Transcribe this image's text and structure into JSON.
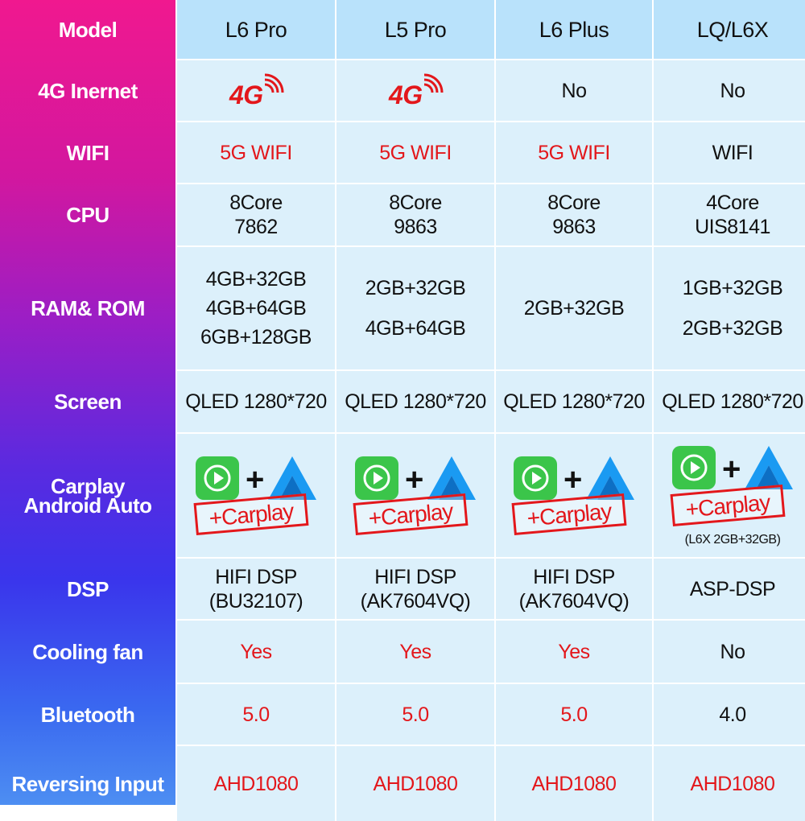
{
  "header": {
    "label": "Model",
    "models": [
      "L6 Pro",
      "L5 Pro",
      "L6 Plus",
      "LQ/L6X"
    ]
  },
  "rows": {
    "internet": {
      "label": "4G Inernet",
      "icon_text": "4G",
      "values": [
        "",
        "",
        "No",
        "No"
      ]
    },
    "wifi": {
      "label": "WIFI",
      "values": [
        "5G WIFI",
        "5G WIFI",
        "5G WIFI",
        "WIFI"
      ]
    },
    "cpu": {
      "label": "CPU",
      "values": [
        [
          "8Core",
          "7862"
        ],
        [
          "8Core",
          "9863"
        ],
        [
          "8Core",
          "9863"
        ],
        [
          "4Core",
          "UIS8141"
        ]
      ]
    },
    "ram": {
      "label": "RAM& ROM",
      "values": [
        [
          "4GB+32GB",
          "4GB+64GB",
          "6GB+128GB"
        ],
        [
          "2GB+32GB",
          "4GB+64GB"
        ],
        [
          "2GB+32GB"
        ],
        [
          "1GB+32GB",
          "2GB+32GB"
        ]
      ]
    },
    "screen": {
      "label": "Screen",
      "values": [
        "QLED 1280*720",
        "QLED 1280*720",
        "QLED 1280*720",
        "QLED 1280*720"
      ]
    },
    "carplay": {
      "label_line1": "Carplay",
      "label_line2": "Android Auto",
      "plus_sign": "+",
      "stamp_text": "+Carplay",
      "note": "(L6X 2GB+32GB)"
    },
    "dsp": {
      "label": "DSP",
      "values": [
        [
          "HIFI DSP",
          "(BU32107)"
        ],
        [
          "HIFI DSP",
          "(AK7604VQ)"
        ],
        [
          "HIFI DSP",
          "(AK7604VQ)"
        ],
        [
          "ASP-DSP"
        ]
      ]
    },
    "fan": {
      "label": "Cooling fan",
      "values": [
        "Yes",
        "Yes",
        "Yes",
        "No"
      ]
    },
    "bluetooth": {
      "label": "Bluetooth",
      "values": [
        "5.0",
        "5.0",
        "5.0",
        "4.0"
      ]
    },
    "reversing": {
      "label": "Reversing Input",
      "values": [
        "AHD1080",
        "AHD1080",
        "AHD1080",
        "AHD1080"
      ]
    }
  },
  "colors": {
    "accent_red": "#e3171b",
    "header_bg": "#b9e2fb",
    "cell_bg": "#dcf0fb",
    "carplay_green": "#3bc54a",
    "android_auto_blue": "#1a9af2"
  }
}
